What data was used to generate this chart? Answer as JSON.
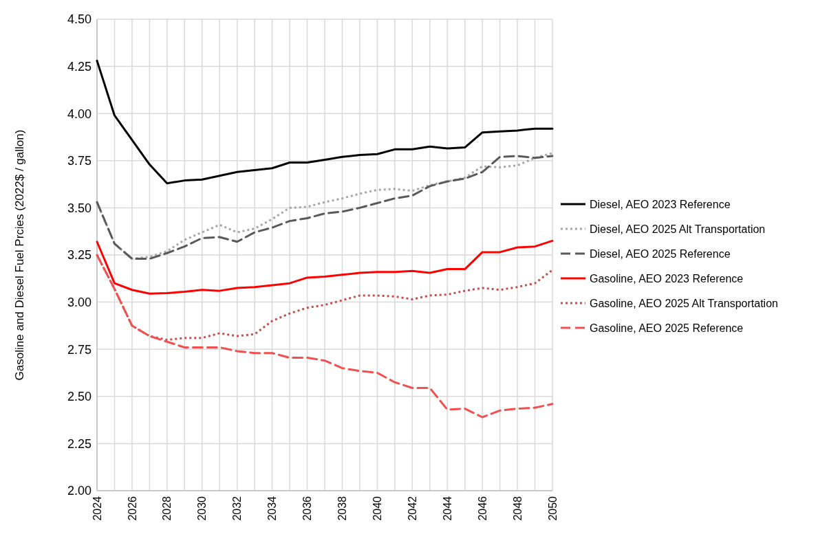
{
  "chart_data": {
    "type": "line",
    "ylabel": "Gasoline and Diesel Fuel Prcies (2022$ / gallon)",
    "x": [
      2024,
      2025,
      2026,
      2027,
      2028,
      2029,
      2030,
      2031,
      2032,
      2033,
      2034,
      2035,
      2036,
      2037,
      2038,
      2039,
      2040,
      2041,
      2042,
      2043,
      2044,
      2045,
      2046,
      2047,
      2048,
      2049,
      2050
    ],
    "xlim": [
      2024,
      2050
    ],
    "xticks": [
      2024,
      {
        "value": 2025,
        "label": null
      },
      2026,
      {
        "value": 2027,
        "label": null
      },
      2028,
      {
        "value": 2029,
        "label": null
      },
      2030,
      {
        "value": 2031,
        "label": null
      },
      2032,
      {
        "value": 2033,
        "label": null
      },
      2034,
      {
        "value": 2035,
        "label": null
      },
      2036,
      {
        "value": 2037,
        "label": null
      },
      2038,
      {
        "value": 2039,
        "label": null
      },
      2040,
      {
        "value": 2041,
        "label": null
      },
      2042,
      {
        "value": 2043,
        "label": null
      },
      2044,
      {
        "value": 2045,
        "label": null
      },
      2046,
      {
        "value": 2047,
        "label": null
      },
      2048,
      {
        "value": 2049,
        "label": null
      },
      2050
    ],
    "ylim": [
      2,
      4.5
    ],
    "yticks": [
      {
        "value": 2,
        "label": "2.00"
      },
      {
        "value": 2.25,
        "label": "2.25"
      },
      {
        "value": 2.5,
        "label": "2.50"
      },
      {
        "value": 2.75,
        "label": "2.75"
      },
      {
        "value": 3,
        "label": "3.00"
      },
      {
        "value": 3.25,
        "label": "3.25"
      },
      {
        "value": 3.5,
        "label": "3.50"
      },
      {
        "value": 3.75,
        "label": "3.75"
      },
      {
        "value": 4,
        "label": "4.00"
      },
      {
        "value": 4.25,
        "label": "4.25"
      },
      {
        "value": 4.5,
        "label": "4.50"
      }
    ],
    "grid": true,
    "legend": "right",
    "marker": "none",
    "series": [
      {
        "name": "Diesel, AEO 2023 Reference",
        "color": "#000000",
        "line_style": "solid",
        "values": [
          4.28,
          3.99,
          3.86,
          3.73,
          3.63,
          3.645,
          3.65,
          3.67,
          3.69,
          3.7,
          3.71,
          3.74,
          3.74,
          3.755,
          3.77,
          3.78,
          3.785,
          3.81,
          3.81,
          3.825,
          3.815,
          3.82,
          3.9,
          3.905,
          3.91,
          3.92,
          3.92
        ]
      },
      {
        "name": "Diesel, AEO 2025 Alt Transportation",
        "color": "#a6a6a6",
        "line_style": "dotted",
        "values": [
          3.53,
          3.31,
          3.23,
          3.24,
          3.27,
          3.33,
          3.37,
          3.41,
          3.37,
          3.39,
          3.44,
          3.5,
          3.505,
          3.53,
          3.55,
          3.575,
          3.595,
          3.6,
          3.59,
          3.62,
          3.64,
          3.66,
          3.72,
          3.715,
          3.725,
          3.765,
          3.79
        ]
      },
      {
        "name": "Diesel, AEO 2025 Reference",
        "color": "#595959",
        "line_style": "dashed",
        "values": [
          3.53,
          3.31,
          3.23,
          3.23,
          3.26,
          3.295,
          3.34,
          3.345,
          3.32,
          3.37,
          3.395,
          3.43,
          3.445,
          3.47,
          3.48,
          3.5,
          3.525,
          3.55,
          3.565,
          3.615,
          3.64,
          3.655,
          3.69,
          3.77,
          3.775,
          3.765,
          3.775
        ]
      },
      {
        "name": "Gasoline, AEO 2023 Reference",
        "color": "#ff0000",
        "line_style": "solid",
        "values": [
          3.32,
          3.1,
          3.065,
          3.045,
          3.048,
          3.055,
          3.065,
          3.06,
          3.075,
          3.08,
          3.09,
          3.1,
          3.13,
          3.135,
          3.145,
          3.155,
          3.16,
          3.16,
          3.165,
          3.155,
          3.175,
          3.175,
          3.265,
          3.265,
          3.29,
          3.295,
          3.325
        ]
      },
      {
        "name": "Gasoline, AEO 2025 Alt Transportation",
        "color": "#c0504d",
        "line_style": "dotted",
        "values": [
          3.25,
          3.07,
          2.875,
          2.82,
          2.8,
          2.81,
          2.81,
          2.835,
          2.82,
          2.83,
          2.9,
          2.94,
          2.97,
          2.985,
          3.01,
          3.035,
          3.035,
          3.03,
          3.015,
          3.035,
          3.04,
          3.06,
          3.075,
          3.065,
          3.08,
          3.1,
          3.17
        ]
      },
      {
        "name": "Gasoline, AEO 2025 Reference",
        "color": "#f05050",
        "line_style": "dashed",
        "values": [
          3.25,
          3.07,
          2.875,
          2.82,
          2.79,
          2.76,
          2.76,
          2.76,
          2.74,
          2.73,
          2.73,
          2.705,
          2.705,
          2.69,
          2.65,
          2.635,
          2.625,
          2.575,
          2.545,
          2.545,
          2.43,
          2.435,
          2.39,
          2.425,
          2.435,
          2.44,
          2.46
        ]
      }
    ]
  }
}
